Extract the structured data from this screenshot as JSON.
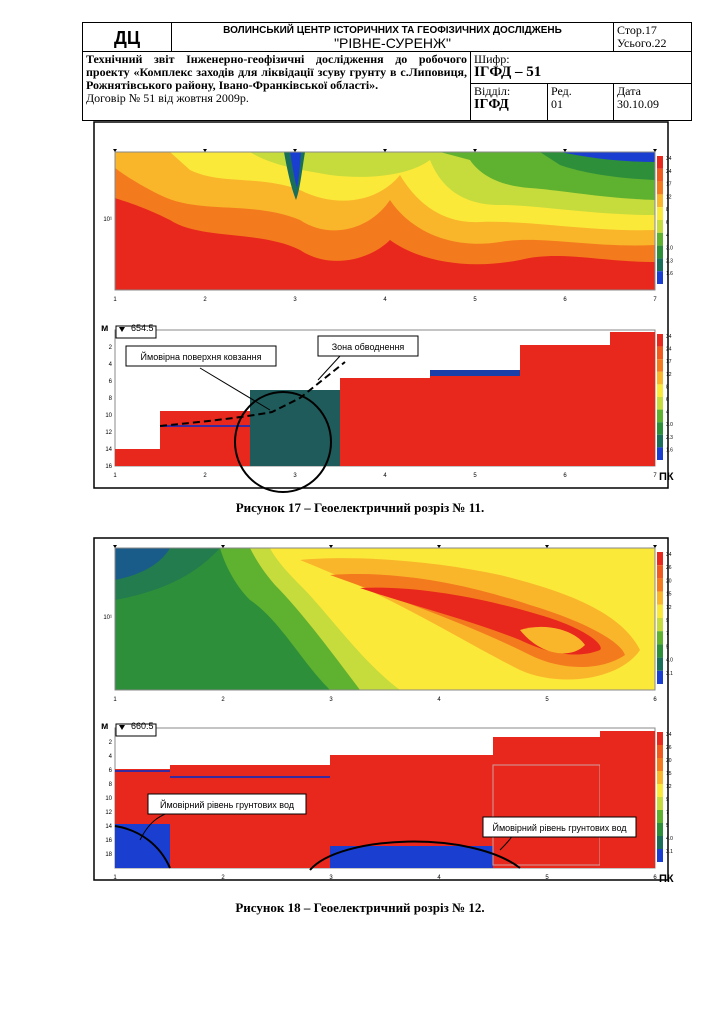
{
  "header": {
    "logo": "ДЦ",
    "org": "ВОЛИНСЬКИЙ ЦЕНТР ІСТОРИЧНИХ ТА ГЕОФІЗИЧНИХ ДОСЛІДЖЕНЬ",
    "company": "\"РІВНЕ-СУРЕНЖ\"",
    "page": "Стор.17",
    "total": "Усього.22",
    "report": "Технічний звіт Інженерно-геофізичні дослідження до робочого проекту «Комплекс заходів для ліквідації зсуву грунту в с.Липовиця, Рожнятівського району, Івано-Франківської області».",
    "contract": "Договір № 51 від    жовтня 2009р.",
    "cipher_label": "Шифр:",
    "cipher": "ІГФД – 51",
    "dept_label": "Відділ:",
    "dept": "ІГФД",
    "rev_label": "Ред.",
    "rev": "01",
    "date_label": "Дата",
    "date": "30.10.09"
  },
  "figures": [
    {
      "caption": "Рисунок 17 – Геоелектричний розріз № 11.",
      "x_ticks": [
        "1",
        "2",
        "3",
        "4",
        "5",
        "6",
        "7"
      ],
      "y_label": "10¹",
      "legend": [
        "34",
        "24",
        "17",
        "12",
        "8",
        "6",
        "4",
        "3.0",
        "2.3",
        "1.6"
      ],
      "elevation": "654.5",
      "depth_unit": "м",
      "depth_ticks": [
        "2",
        "4",
        "6",
        "8",
        "10",
        "12",
        "14",
        "16"
      ],
      "station_unit": "ПК",
      "callouts": [
        "Ймовірна поверхня ковзання",
        "Зона обводнення"
      ]
    },
    {
      "caption": "Рисунок 18 – Геоелектричний розріз № 12.",
      "x_ticks": [
        "1",
        "2",
        "3",
        "4",
        "5",
        "6"
      ],
      "y_label": "10¹",
      "legend": [
        "34",
        "26",
        "20",
        "15",
        "12",
        "9",
        "7",
        "5",
        "4.0",
        "3.1"
      ],
      "elevation": "660.5",
      "depth_unit": "м",
      "depth_ticks": [
        "2",
        "4",
        "6",
        "8",
        "10",
        "12",
        "14",
        "16",
        "18"
      ],
      "station_unit": "ПК",
      "callouts": [
        "Ймовірний рівень грунтових вод",
        "Ймовірний рівень грунтових вод"
      ]
    }
  ]
}
